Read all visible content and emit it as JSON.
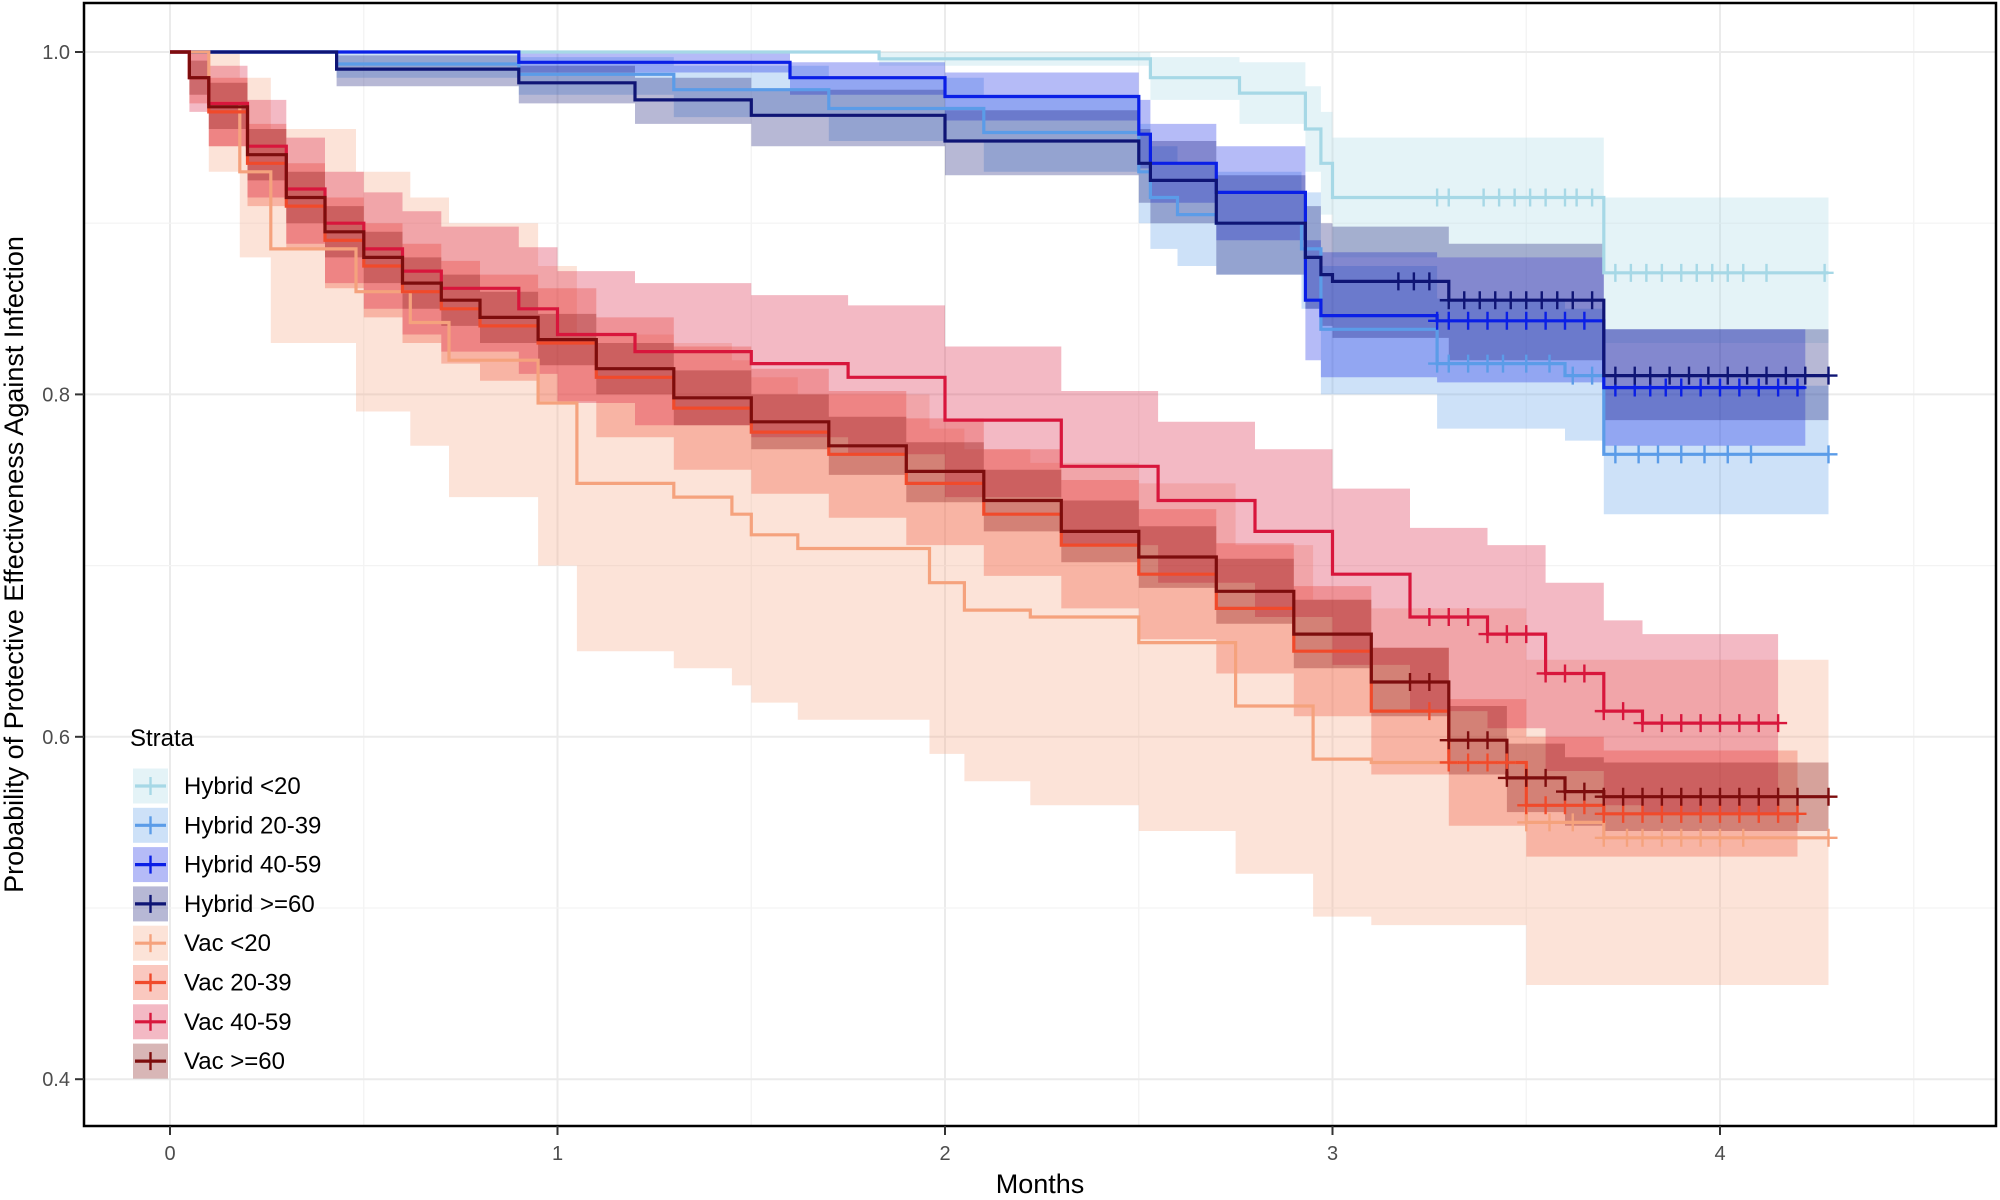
{
  "chart_data": {
    "type": "line",
    "subtype": "kaplan-meier step curves with confidence bands",
    "title": "",
    "xlabel": "Months",
    "ylabel": "Probability of Protective Effectiveness Against Infection",
    "xlim": [
      -0.2,
      4.7
    ],
    "ylim": [
      0.375,
      1.025
    ],
    "x_ticks": [
      0,
      1,
      2,
      3,
      4
    ],
    "y_ticks": [
      0.4,
      0.6,
      0.8,
      1.0
    ],
    "y_tick_labels": [
      "0.4",
      "0.6",
      "0.8",
      "1.0"
    ],
    "grid": true,
    "legend": {
      "title": "Strata",
      "position": "bottom-left inside"
    },
    "series": [
      {
        "name": "Hybrid <20",
        "color": "#a6d8e6",
        "x": [
          0,
          1.83,
          2.53,
          2.76,
          2.93,
          2.97,
          3.0,
          3.7,
          4.28
        ],
        "y": [
          1.0,
          0.996,
          0.985,
          0.976,
          0.955,
          0.935,
          0.915,
          0.871,
          0.871
        ],
        "lower": [
          1.0,
          0.992,
          0.972,
          0.958,
          0.93,
          0.905,
          0.88,
          0.83,
          0.83
        ],
        "upper": [
          1.0,
          1.0,
          0.997,
          0.994,
          0.98,
          0.965,
          0.95,
          0.915,
          0.932
        ],
        "censor_x": [
          3.27,
          3.3,
          3.39,
          3.43,
          3.47,
          3.51,
          3.55,
          3.6,
          3.63,
          3.67,
          3.73,
          3.77,
          3.81,
          3.85,
          3.9,
          3.94,
          3.98,
          4.02,
          4.06,
          4.12,
          4.27
        ]
      },
      {
        "name": "Hybrid 20-39",
        "color": "#5b9ce8",
        "x": [
          0,
          0.43,
          0.9,
          1.3,
          1.7,
          2.1,
          2.5,
          2.53,
          2.6,
          2.7,
          2.92,
          2.97,
          3.27,
          3.6,
          3.7,
          4.28
        ],
        "y": [
          1.0,
          0.993,
          0.987,
          0.978,
          0.967,
          0.953,
          0.93,
          0.915,
          0.905,
          0.9,
          0.885,
          0.838,
          0.818,
          0.811,
          0.765,
          0.765
        ],
        "lower": [
          1.0,
          0.985,
          0.975,
          0.962,
          0.948,
          0.93,
          0.9,
          0.885,
          0.875,
          0.87,
          0.85,
          0.8,
          0.78,
          0.773,
          0.73,
          0.73
        ],
        "upper": [
          1.0,
          1.0,
          0.997,
          0.992,
          0.985,
          0.975,
          0.958,
          0.945,
          0.935,
          0.93,
          0.918,
          0.875,
          0.856,
          0.85,
          0.805,
          0.805
        ],
        "censor_x": [
          3.27,
          3.3,
          3.35,
          3.4,
          3.44,
          3.5,
          3.56,
          3.62,
          3.67,
          3.73,
          3.79,
          3.84,
          3.9,
          3.96,
          4.02,
          4.08,
          4.28
        ]
      },
      {
        "name": "Hybrid 40-59",
        "color": "#0a1fe6",
        "x": [
          0,
          0.9,
          1.6,
          2.0,
          2.5,
          2.53,
          2.7,
          2.93,
          2.97,
          3.27,
          3.7,
          4.22
        ],
        "y": [
          1.0,
          0.994,
          0.985,
          0.974,
          0.952,
          0.935,
          0.918,
          0.855,
          0.846,
          0.843,
          0.804,
          0.804
        ],
        "lower": [
          1.0,
          0.988,
          0.975,
          0.96,
          0.932,
          0.912,
          0.89,
          0.82,
          0.81,
          0.807,
          0.77,
          0.77
        ],
        "upper": [
          1.0,
          1.0,
          0.994,
          0.988,
          0.972,
          0.958,
          0.945,
          0.89,
          0.883,
          0.88,
          0.838,
          0.838
        ],
        "censor_x": [
          3.27,
          3.3,
          3.35,
          3.4,
          3.45,
          3.5,
          3.55,
          3.6,
          3.65,
          3.73,
          3.78,
          3.82,
          3.86,
          3.9,
          3.95,
          4.0,
          4.05,
          4.1,
          4.15,
          4.2
        ]
      },
      {
        "name": "Hybrid >=60",
        "color": "#0f1575",
        "x": [
          0,
          0.43,
          0.9,
          1.2,
          1.5,
          2.0,
          2.5,
          2.53,
          2.7,
          2.93,
          2.97,
          3.0,
          3.3,
          3.7,
          4.28
        ],
        "y": [
          1.0,
          0.99,
          0.982,
          0.972,
          0.963,
          0.948,
          0.935,
          0.925,
          0.9,
          0.88,
          0.87,
          0.866,
          0.855,
          0.811,
          0.811
        ],
        "lower": [
          1.0,
          0.98,
          0.97,
          0.958,
          0.945,
          0.928,
          0.912,
          0.9,
          0.87,
          0.85,
          0.84,
          0.833,
          0.82,
          0.785,
          0.785
        ],
        "upper": [
          1.0,
          0.998,
          0.992,
          0.985,
          0.978,
          0.966,
          0.955,
          0.948,
          0.928,
          0.91,
          0.9,
          0.898,
          0.888,
          0.838,
          0.838
        ],
        "censor_x": [
          3.17,
          3.21,
          3.25,
          3.3,
          3.34,
          3.38,
          3.42,
          3.46,
          3.5,
          3.54,
          3.58,
          3.62,
          3.67,
          3.73,
          3.78,
          3.82,
          3.87,
          3.92,
          3.97,
          4.02,
          4.07,
          4.12,
          4.17,
          4.22,
          4.28
        ]
      },
      {
        "name": "Vac <20",
        "color": "#f5a27d",
        "x": [
          0,
          0.1,
          0.18,
          0.26,
          0.48,
          0.62,
          0.72,
          0.95,
          1.05,
          1.3,
          1.45,
          1.5,
          1.62,
          1.96,
          2.05,
          2.22,
          2.5,
          2.75,
          2.95,
          3.1,
          3.5,
          3.7,
          4.28
        ],
        "y": [
          1.0,
          0.97,
          0.93,
          0.885,
          0.86,
          0.842,
          0.82,
          0.795,
          0.748,
          0.74,
          0.73,
          0.718,
          0.71,
          0.69,
          0.674,
          0.67,
          0.655,
          0.618,
          0.587,
          0.585,
          0.55,
          0.541,
          0.541
        ],
        "lower": [
          1.0,
          0.93,
          0.88,
          0.83,
          0.79,
          0.77,
          0.74,
          0.7,
          0.65,
          0.64,
          0.63,
          0.62,
          0.61,
          0.59,
          0.574,
          0.56,
          0.545,
          0.52,
          0.495,
          0.49,
          0.455,
          0.455,
          0.455
        ],
        "upper": [
          1.0,
          1.0,
          0.985,
          0.955,
          0.93,
          0.915,
          0.9,
          0.875,
          0.835,
          0.83,
          0.82,
          0.81,
          0.8,
          0.78,
          0.768,
          0.76,
          0.748,
          0.712,
          0.68,
          0.675,
          0.645,
          0.645,
          0.645
        ],
        "censor_x": [
          3.3,
          3.35,
          3.4,
          3.45,
          3.5,
          3.56,
          3.62,
          3.7,
          3.76,
          3.8,
          3.85,
          3.9,
          3.95,
          4.0,
          4.06,
          4.28
        ]
      },
      {
        "name": "Vac 20-39",
        "color": "#f04a2b",
        "x": [
          0,
          0.05,
          0.1,
          0.2,
          0.3,
          0.4,
          0.5,
          0.6,
          0.7,
          0.8,
          0.95,
          1.1,
          1.3,
          1.5,
          1.7,
          1.9,
          2.1,
          2.3,
          2.5,
          2.7,
          2.9,
          3.1,
          3.3,
          3.5,
          3.7,
          4.2
        ],
        "y": [
          1.0,
          0.985,
          0.965,
          0.935,
          0.91,
          0.89,
          0.875,
          0.86,
          0.85,
          0.84,
          0.83,
          0.81,
          0.792,
          0.778,
          0.765,
          0.748,
          0.73,
          0.712,
          0.695,
          0.675,
          0.65,
          0.615,
          0.585,
          0.56,
          0.555,
          0.555
        ],
        "lower": [
          1.0,
          0.97,
          0.945,
          0.91,
          0.885,
          0.862,
          0.845,
          0.83,
          0.818,
          0.808,
          0.796,
          0.775,
          0.756,
          0.742,
          0.728,
          0.712,
          0.694,
          0.675,
          0.657,
          0.637,
          0.612,
          0.578,
          0.548,
          0.53,
          0.53,
          0.53
        ],
        "upper": [
          1.0,
          1.0,
          0.985,
          0.958,
          0.935,
          0.915,
          0.9,
          0.888,
          0.878,
          0.87,
          0.862,
          0.845,
          0.828,
          0.815,
          0.802,
          0.786,
          0.768,
          0.75,
          0.733,
          0.713,
          0.688,
          0.652,
          0.622,
          0.6,
          0.592,
          0.592
        ],
        "censor_x": [
          3.25,
          3.3,
          3.35,
          3.4,
          3.45,
          3.5,
          3.55,
          3.6,
          3.65,
          3.7,
          3.75,
          3.8,
          3.85,
          3.9,
          3.95,
          4.0,
          4.05,
          4.1,
          4.15,
          4.2
        ]
      },
      {
        "name": "Vac 40-59",
        "color": "#d8163c",
        "x": [
          0,
          0.05,
          0.1,
          0.2,
          0.3,
          0.4,
          0.5,
          0.6,
          0.7,
          0.9,
          1.0,
          1.2,
          1.5,
          1.75,
          2.0,
          2.3,
          2.55,
          2.8,
          3.0,
          3.2,
          3.4,
          3.55,
          3.7,
          3.8,
          4.15
        ],
        "y": [
          1.0,
          0.985,
          0.97,
          0.945,
          0.92,
          0.9,
          0.885,
          0.872,
          0.862,
          0.85,
          0.835,
          0.825,
          0.818,
          0.81,
          0.785,
          0.758,
          0.738,
          0.72,
          0.695,
          0.67,
          0.66,
          0.637,
          0.615,
          0.608,
          0.608
        ],
        "lower": [
          1.0,
          0.965,
          0.945,
          0.915,
          0.888,
          0.865,
          0.85,
          0.835,
          0.825,
          0.812,
          0.795,
          0.782,
          0.775,
          0.765,
          0.74,
          0.712,
          0.69,
          0.67,
          0.642,
          0.615,
          0.605,
          0.58,
          0.56,
          0.555,
          0.555
        ],
        "upper": [
          1.0,
          1.0,
          0.992,
          0.972,
          0.95,
          0.93,
          0.918,
          0.907,
          0.898,
          0.886,
          0.872,
          0.865,
          0.858,
          0.852,
          0.828,
          0.802,
          0.784,
          0.768,
          0.745,
          0.722,
          0.712,
          0.69,
          0.668,
          0.66,
          0.66
        ],
        "censor_x": [
          3.25,
          3.3,
          3.35,
          3.4,
          3.45,
          3.5,
          3.55,
          3.6,
          3.65,
          3.7,
          3.75,
          3.8,
          3.85,
          3.9,
          3.95,
          4.0,
          4.05,
          4.1,
          4.15
        ]
      },
      {
        "name": "Vac >=60",
        "color": "#7d0d0d",
        "x": [
          0,
          0.05,
          0.1,
          0.2,
          0.3,
          0.4,
          0.5,
          0.6,
          0.7,
          0.8,
          0.95,
          1.1,
          1.3,
          1.5,
          1.7,
          1.9,
          2.1,
          2.3,
          2.5,
          2.7,
          2.9,
          3.1,
          3.3,
          3.45,
          3.6,
          3.7,
          4.28
        ],
        "y": [
          1.0,
          0.985,
          0.968,
          0.94,
          0.915,
          0.895,
          0.88,
          0.865,
          0.855,
          0.845,
          0.832,
          0.815,
          0.798,
          0.784,
          0.77,
          0.755,
          0.738,
          0.72,
          0.705,
          0.685,
          0.66,
          0.632,
          0.598,
          0.576,
          0.568,
          0.565,
          0.565
        ],
        "lower": [
          1.0,
          0.975,
          0.955,
          0.925,
          0.9,
          0.88,
          0.865,
          0.85,
          0.84,
          0.83,
          0.817,
          0.8,
          0.782,
          0.768,
          0.753,
          0.737,
          0.72,
          0.702,
          0.687,
          0.666,
          0.64,
          0.612,
          0.578,
          0.556,
          0.548,
          0.545,
          0.545
        ],
        "upper": [
          1.0,
          0.995,
          0.982,
          0.955,
          0.93,
          0.91,
          0.895,
          0.88,
          0.87,
          0.86,
          0.847,
          0.83,
          0.814,
          0.8,
          0.787,
          0.772,
          0.756,
          0.738,
          0.723,
          0.704,
          0.68,
          0.652,
          0.618,
          0.596,
          0.588,
          0.585,
          0.585
        ],
        "censor_x": [
          3.2,
          3.25,
          3.3,
          3.35,
          3.4,
          3.45,
          3.5,
          3.55,
          3.6,
          3.65,
          3.7,
          3.75,
          3.8,
          3.85,
          3.9,
          3.95,
          4.0,
          4.05,
          4.1,
          4.15,
          4.2,
          4.28
        ]
      }
    ]
  }
}
